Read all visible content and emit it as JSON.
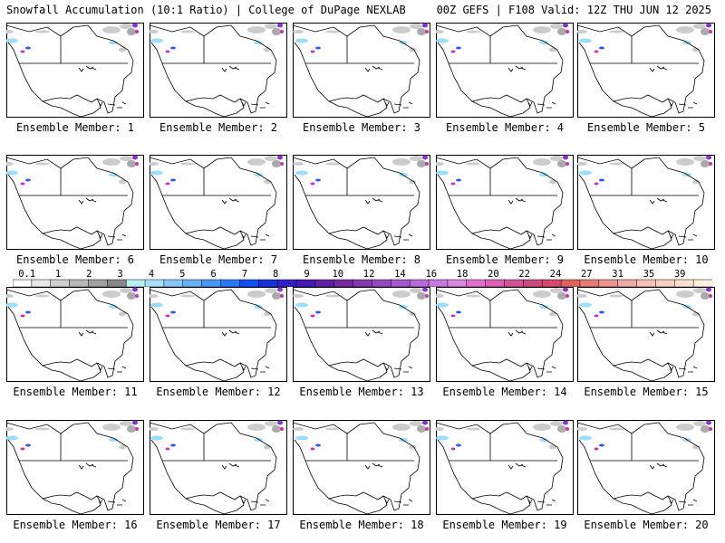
{
  "header": {
    "left": "Snowfall Accumulation (10:1 Ratio) | College of DuPage NEXLAB",
    "right": "00Z GEFS | F108 Valid: 12Z THU JUN 12 2025"
  },
  "members": [
    {
      "label": "Ensemble Member: 1"
    },
    {
      "label": "Ensemble Member: 2"
    },
    {
      "label": "Ensemble Member: 3"
    },
    {
      "label": "Ensemble Member: 4"
    },
    {
      "label": "Ensemble Member: 5"
    },
    {
      "label": "Ensemble Member: 6"
    },
    {
      "label": "Ensemble Member: 7"
    },
    {
      "label": "Ensemble Member: 8"
    },
    {
      "label": "Ensemble Member: 9"
    },
    {
      "label": "Ensemble Member: 10"
    },
    {
      "label": "Ensemble Member: 11"
    },
    {
      "label": "Ensemble Member: 12"
    },
    {
      "label": "Ensemble Member: 13"
    },
    {
      "label": "Ensemble Member: 14"
    },
    {
      "label": "Ensemble Member: 15"
    },
    {
      "label": "Ensemble Member: 16"
    },
    {
      "label": "Ensemble Member: 17"
    },
    {
      "label": "Ensemble Member: 18"
    },
    {
      "label": "Ensemble Member: 19"
    },
    {
      "label": "Ensemble Member: 20"
    }
  ],
  "legend": {
    "labels": [
      "0.1",
      "1",
      "2",
      "3",
      "4",
      "5",
      "6",
      "7",
      "8",
      "9",
      "10",
      "12",
      "14",
      "16",
      "18",
      "20",
      "22",
      "24",
      "27",
      "31",
      "35",
      "39"
    ],
    "colors": [
      "#ffffff",
      "#e8e8e8",
      "#d0d0d0",
      "#b8b8b8",
      "#a0a0a0",
      "#888888",
      "#b4f0f0",
      "#a8e0ff",
      "#88c8ff",
      "#68b0ff",
      "#4898ff",
      "#2878ff",
      "#1050ff",
      "#1830e0",
      "#3020c8",
      "#4818b8",
      "#6020a8",
      "#7828a0",
      "#8838b0",
      "#9848c0",
      "#a858d0",
      "#b868d8",
      "#c878e0",
      "#d888e0",
      "#e070d0",
      "#e060b8",
      "#d85098",
      "#d04880",
      "#d84868",
      "#e06060",
      "#e87878",
      "#f09090",
      "#f0a8a8",
      "#f8c0b8",
      "#f8d0c0",
      "#fce0d0",
      "#fff0e0"
    ],
    "snow_colors": {
      "light": "#cccccc",
      "cyan": "#99ddff",
      "blue": "#3355ff",
      "purple": "#8833cc",
      "magenta": "#cc33aa"
    }
  }
}
